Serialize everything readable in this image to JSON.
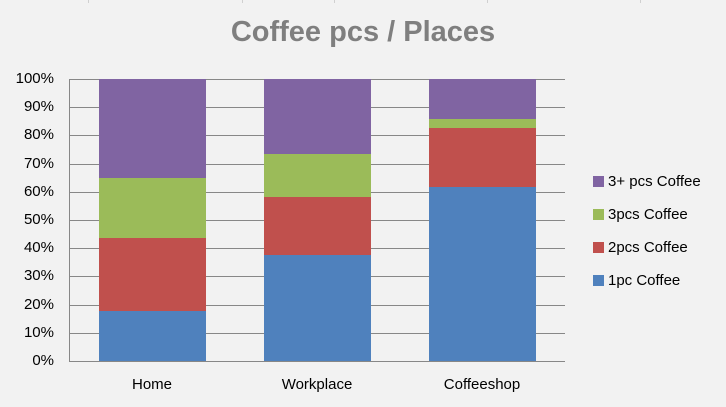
{
  "chart_data": {
    "type": "bar",
    "stacked": "percent",
    "title": "Coffee pcs / Places",
    "xlabel": "",
    "ylabel": "",
    "ylim": [
      0,
      100
    ],
    "yticks": [
      "0%",
      "10%",
      "20%",
      "30%",
      "40%",
      "50%",
      "60%",
      "70%",
      "80%",
      "90%",
      "100%"
    ],
    "grid": true,
    "legend_position": "right",
    "categories": [
      "Home",
      "Workplace",
      "Coffeeshop"
    ],
    "series": [
      {
        "name": "1pc Coffee",
        "color": "#4f81bd",
        "values": [
          17.7,
          37.6,
          61.7
        ]
      },
      {
        "name": "2pcs Coffee",
        "color": "#c0504d",
        "values": [
          25.9,
          20.6,
          20.9
        ]
      },
      {
        "name": "3pcs Coffee",
        "color": "#9bbb59",
        "values": [
          21.3,
          15.2,
          3.2
        ]
      },
      {
        "name": "3+ pcs Coffee",
        "color": "#8064a2",
        "values": [
          35.1,
          26.6,
          14.2
        ]
      }
    ]
  },
  "legend": [
    {
      "label": "3+ pcs Coffee",
      "color": "#8064a2"
    },
    {
      "label": "3pcs Coffee",
      "color": "#9bbb59"
    },
    {
      "label": "2pcs Coffee",
      "color": "#c0504d"
    },
    {
      "label": "1pc Coffee",
      "color": "#4f81bd"
    }
  ]
}
